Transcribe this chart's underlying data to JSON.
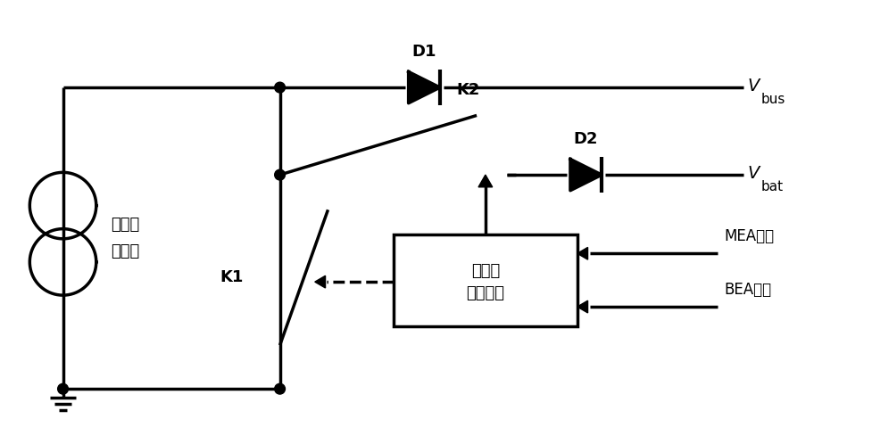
{
  "bg_color": "#ffffff",
  "line_color": "#000000",
  "lw": 2.5,
  "fig_width": 9.78,
  "fig_height": 4.98,
  "solar_label1": "太阳电",
  "solar_label2": "池子阵",
  "box_label1": "控制与",
  "box_label2": "驱动电路",
  "k1_label": "K1",
  "k2_label": "K2",
  "d1_label": "D1",
  "d2_label": "D2",
  "vbus_label": "V",
  "vbus_sub": "bus",
  "vbat_label": "V",
  "vbat_sub": "bat",
  "mea_label": "MEA电压",
  "bea_label": "BEA电压"
}
